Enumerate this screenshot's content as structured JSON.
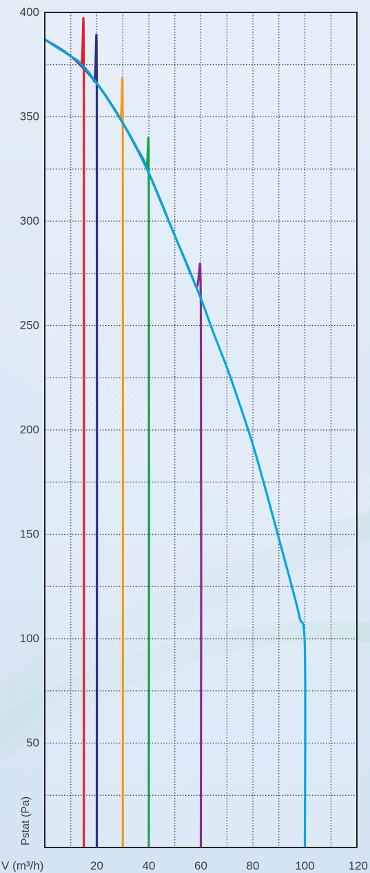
{
  "chart_data": {
    "type": "line",
    "title": "",
    "xlabel": "V (m³/h)",
    "ylabel": "Pstat (Pa)",
    "xlim": [
      0,
      120
    ],
    "ylim": [
      0,
      400
    ],
    "x_ticks": [
      20,
      40,
      60,
      80,
      100,
      120
    ],
    "y_ticks": [
      50,
      100,
      150,
      200,
      250,
      300,
      350,
      400
    ],
    "x_tick_labels": [
      "20",
      "40",
      "60",
      "80",
      "100",
      "120"
    ],
    "y_tick_labels": [
      "50",
      "100",
      "150",
      "200",
      "250",
      "300",
      "350",
      "400"
    ],
    "grid": true,
    "legend": "none",
    "series": [
      {
        "color": "#00a6e0",
        "points": [
          [
            0,
            387
          ],
          [
            5,
            383
          ],
          [
            10,
            379
          ],
          [
            15,
            374
          ],
          [
            20,
            366
          ],
          [
            25,
            357
          ],
          [
            30,
            347
          ],
          [
            35,
            336
          ],
          [
            40,
            323
          ],
          [
            45,
            308
          ],
          [
            50,
            293
          ],
          [
            55,
            278
          ],
          [
            60,
            263
          ],
          [
            65,
            246
          ],
          [
            70,
            230
          ],
          [
            75,
            212
          ],
          [
            80,
            193
          ],
          [
            85,
            171
          ],
          [
            90,
            148
          ],
          [
            95,
            125
          ],
          [
            98,
            110
          ],
          [
            100,
            95
          ],
          [
            100,
            0
          ]
        ]
      },
      {
        "color": "#e2202c",
        "points": [
          [
            0,
            387
          ],
          [
            5,
            383
          ],
          [
            10,
            379
          ],
          [
            14,
            375
          ],
          [
            15,
            368
          ],
          [
            15,
            0
          ]
        ]
      },
      {
        "color": "#2b2f86",
        "points": [
          [
            0,
            387
          ],
          [
            10,
            379
          ],
          [
            15,
            374
          ],
          [
            19,
            367
          ],
          [
            20,
            361
          ],
          [
            20,
            0
          ]
        ]
      },
      {
        "color": "#f39a1e",
        "points": [
          [
            0,
            387
          ],
          [
            10,
            379
          ],
          [
            20,
            366
          ],
          [
            25,
            357
          ],
          [
            29,
            349
          ],
          [
            30,
            341
          ],
          [
            30,
            0
          ]
        ]
      },
      {
        "color": "#1ba04a",
        "points": [
          [
            0,
            387
          ],
          [
            10,
            379
          ],
          [
            20,
            366
          ],
          [
            30,
            347
          ],
          [
            35,
            336
          ],
          [
            39,
            326
          ],
          [
            40,
            313
          ],
          [
            40,
            0
          ]
        ]
      },
      {
        "color": "#8a2a8e",
        "points": [
          [
            0,
            387
          ],
          [
            10,
            379
          ],
          [
            20,
            366
          ],
          [
            30,
            347
          ],
          [
            40,
            323
          ],
          [
            50,
            293
          ],
          [
            58,
            269
          ],
          [
            60,
            258
          ],
          [
            60,
            0
          ]
        ]
      }
    ]
  }
}
